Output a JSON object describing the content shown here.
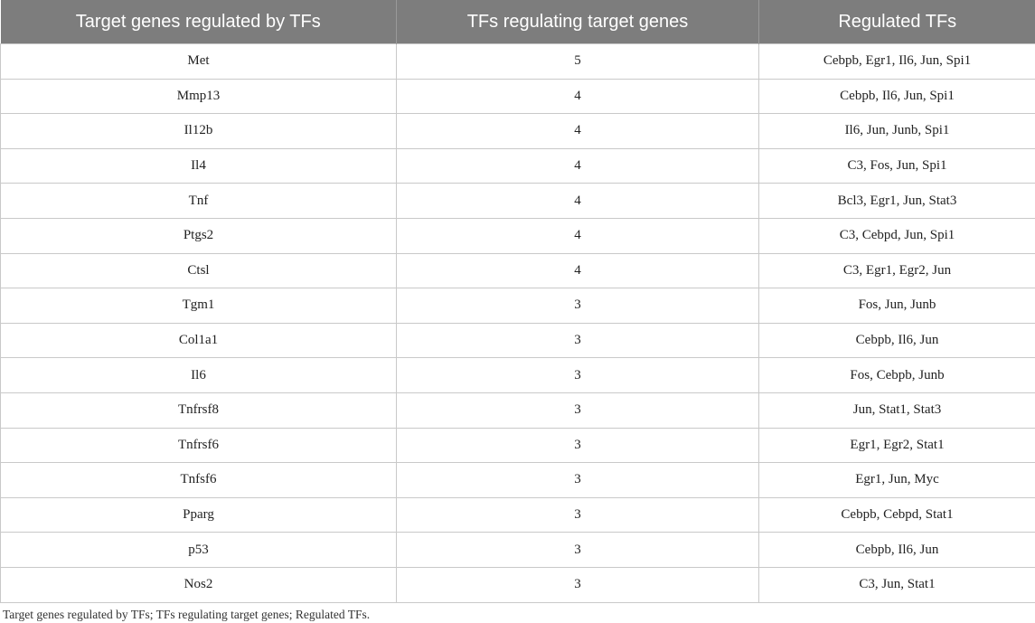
{
  "table": {
    "headers": [
      "Target genes regulated by TFs",
      "TFs regulating target genes",
      "Regulated TFs"
    ],
    "rows": [
      [
        "Met",
        "5",
        "Cebpb, Egr1, Il6, Jun, Spi1"
      ],
      [
        "Mmp13",
        "4",
        "Cebpb, Il6, Jun, Spi1"
      ],
      [
        "Il12b",
        "4",
        "Il6, Jun, Junb, Spi1"
      ],
      [
        "Il4",
        "4",
        "C3, Fos, Jun, Spi1"
      ],
      [
        "Tnf",
        "4",
        "Bcl3, Egr1, Jun, Stat3"
      ],
      [
        "Ptgs2",
        "4",
        "C3, Cebpd, Jun, Spi1"
      ],
      [
        "Ctsl",
        "4",
        "C3, Egr1, Egr2, Jun"
      ],
      [
        "Tgm1",
        "3",
        "Fos, Jun, Junb"
      ],
      [
        "Col1a1",
        "3",
        "Cebpb, Il6, Jun"
      ],
      [
        "Il6",
        "3",
        "Fos, Cebpb, Junb"
      ],
      [
        "Tnfrsf8",
        "3",
        "Jun, Stat1, Stat3"
      ],
      [
        "Tnfrsf6",
        "3",
        "Egr1, Egr2, Stat1"
      ],
      [
        "Tnfsf6",
        "3",
        "Egr1, Jun, Myc"
      ],
      [
        "Pparg",
        "3",
        "Cebpb, Cebpd, Stat1"
      ],
      [
        "p53",
        "3",
        "Cebpb, Il6, Jun"
      ],
      [
        "Nos2",
        "3",
        "C3, Jun, Stat1"
      ]
    ]
  },
  "caption": "Target genes regulated by TFs; TFs regulating target genes; Regulated TFs."
}
